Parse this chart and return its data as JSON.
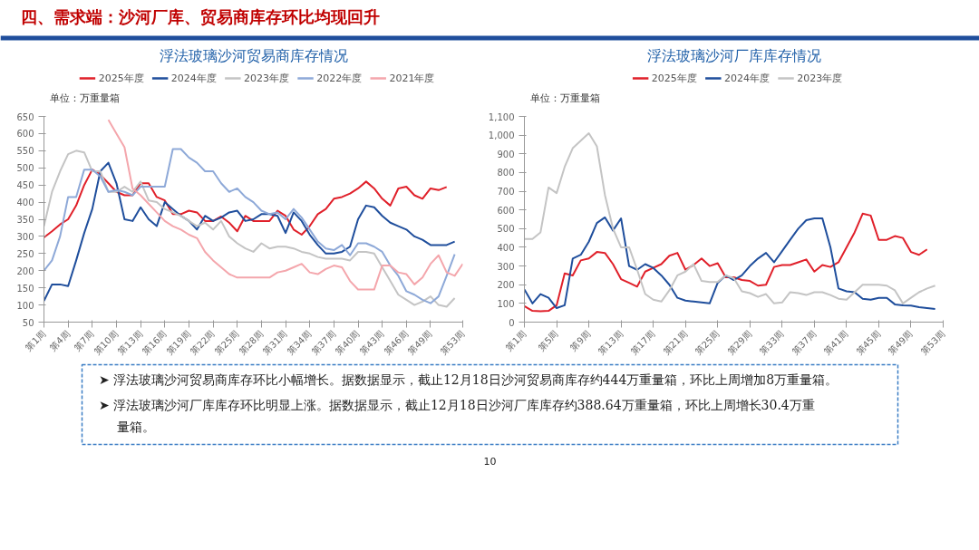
{
  "chart_data": [
    {
      "type": "other",
      "title": "四、需求端：沙河厂库、贸易商库存环比均现回升"
    },
    {
      "type": "line",
      "title": "浮法玻璃沙河贸易商库存情况",
      "ylabel": "单位：万重量箱",
      "legend": "top",
      "categories": [
        "第1周",
        null,
        null,
        "第4周",
        null,
        null,
        "第7周",
        null,
        null,
        "第10周",
        null,
        null,
        "第13周",
        null,
        null,
        "第16周",
        null,
        null,
        "第19周",
        null,
        null,
        "第22周",
        null,
        null,
        "第25周",
        null,
        null,
        "第28周",
        null,
        null,
        "第31周",
        null,
        null,
        "第34周",
        null,
        null,
        "第37周",
        null,
        null,
        "第40周",
        null,
        null,
        "第43周",
        null,
        null,
        "第46周",
        null,
        null,
        "第49周",
        null,
        null,
        null,
        "第53周"
      ],
      "ylim": [
        50,
        650
      ],
      "yticks": [
        50,
        100,
        150,
        200,
        250,
        300,
        350,
        400,
        450,
        500,
        550,
        600,
        650
      ],
      "series": [
        {
          "name": "2025年度",
          "color": "#e0202a",
          "values": [
            297,
            315,
            335,
            350,
            390,
            450,
            495,
            480,
            455,
            430,
            420,
            420,
            455,
            455,
            415,
            405,
            365,
            365,
            375,
            370,
            345,
            345,
            358,
            340,
            315,
            360,
            345,
            345,
            345,
            375,
            360,
            320,
            305,
            330,
            365,
            380,
            410,
            415,
            425,
            440,
            460,
            440,
            410,
            390,
            440,
            445,
            420,
            410,
            440,
            435,
            444,
            null,
            null
          ]
        },
        {
          "name": "2024年度",
          "color": "#1f4e9c",
          "values": [
            112,
            160,
            160,
            155,
            230,
            310,
            380,
            490,
            515,
            455,
            350,
            345,
            385,
            350,
            330,
            400,
            380,
            360,
            345,
            320,
            360,
            345,
            355,
            370,
            375,
            345,
            350,
            365,
            365,
            360,
            310,
            370,
            345,
            305,
            275,
            250,
            250,
            255,
            270,
            350,
            390,
            385,
            360,
            340,
            330,
            320,
            300,
            290,
            275,
            275,
            275,
            285,
            null
          ]
        },
        {
          "name": "2023年度",
          "color": "#c4c4c4",
          "values": [
            330,
            430,
            490,
            540,
            550,
            545,
            490,
            490,
            430,
            430,
            445,
            430,
            460,
            405,
            400,
            380,
            370,
            360,
            345,
            330,
            340,
            320,
            345,
            300,
            280,
            265,
            255,
            280,
            265,
            270,
            270,
            265,
            255,
            250,
            240,
            235,
            235,
            235,
            230,
            255,
            255,
            250,
            210,
            170,
            130,
            115,
            100,
            110,
            125,
            100,
            95,
            120,
            null
          ]
        },
        {
          "name": "2022年度",
          "color": "#8ea9d8",
          "values": [
            200,
            230,
            300,
            415,
            415,
            495,
            495,
            475,
            430,
            435,
            430,
            420,
            445,
            445,
            445,
            445,
            555,
            555,
            530,
            515,
            490,
            490,
            455,
            430,
            440,
            415,
            400,
            375,
            365,
            370,
            350,
            380,
            355,
            320,
            285,
            265,
            260,
            275,
            245,
            280,
            280,
            270,
            255,
            215,
            185,
            140,
            130,
            115,
            105,
            125,
            185,
            248,
            null
          ]
        },
        {
          "name": "2021年度",
          "color": "#f4a6ac",
          "values": [
            null,
            null,
            null,
            null,
            null,
            null,
            null,
            null,
            640,
            600,
            560,
            440,
            420,
            395,
            370,
            345,
            330,
            320,
            305,
            295,
            255,
            230,
            210,
            190,
            180,
            180,
            180,
            180,
            180,
            195,
            200,
            210,
            220,
            195,
            190,
            205,
            215,
            210,
            170,
            145,
            145,
            145,
            215,
            215,
            195,
            190,
            160,
            180,
            220,
            245,
            195,
            185,
            220
          ]
        }
      ]
    },
    {
      "type": "line",
      "title": "浮法玻璃沙河厂库库存情况",
      "ylabel": "单位：万重量箱",
      "legend": "top",
      "categories": [
        "第1周",
        null,
        null,
        null,
        "第5周",
        null,
        null,
        null,
        "第9周",
        null,
        null,
        null,
        "第13周",
        null,
        null,
        null,
        "第17周",
        null,
        null,
        null,
        "第21周",
        null,
        null,
        null,
        "第25周",
        null,
        null,
        null,
        "第29周",
        null,
        null,
        null,
        "第33周",
        null,
        null,
        null,
        "第37周",
        null,
        null,
        null,
        "第41周",
        null,
        null,
        null,
        "第45周",
        null,
        null,
        null,
        "第49周",
        null,
        null,
        null,
        "第53周"
      ],
      "ylim": [
        0,
        1100
      ],
      "yticks": [
        0,
        100,
        200,
        300,
        400,
        500,
        600,
        700,
        800,
        900,
        {
          "value": 1000,
          "label": "1,000"
        },
        {
          "value": 1100,
          "label": "1,100"
        }
      ],
      "series": [
        {
          "name": "2025年度",
          "color": "#e0202a",
          "values": [
            85,
            60,
            58,
            60,
            90,
            260,
            250,
            330,
            340,
            375,
            370,
            310,
            230,
            210,
            190,
            270,
            290,
            310,
            355,
            370,
            280,
            305,
            340,
            300,
            315,
            240,
            240,
            225,
            220,
            195,
            200,
            295,
            305,
            305,
            320,
            335,
            270,
            305,
            295,
            320,
            400,
            480,
            580,
            570,
            440,
            440,
            460,
            450,
            375,
            360,
            389,
            null,
            null
          ]
        },
        {
          "name": "2024年度",
          "color": "#1f4e9c",
          "values": [
            175,
            100,
            150,
            130,
            75,
            90,
            340,
            360,
            430,
            530,
            560,
            490,
            555,
            300,
            280,
            310,
            290,
            250,
            200,
            130,
            115,
            110,
            105,
            100,
            210,
            250,
            225,
            250,
            300,
            340,
            370,
            320,
            380,
            440,
            500,
            545,
            555,
            555,
            400,
            180,
            165,
            160,
            125,
            120,
            130,
            130,
            95,
            90,
            88,
            80,
            75,
            70,
            null
          ]
        },
        {
          "name": "2023年度",
          "color": "#c4c4c4",
          "values": [
            445,
            445,
            480,
            720,
            690,
            830,
            930,
            970,
            1010,
            940,
            680,
            500,
            400,
            400,
            280,
            150,
            120,
            110,
            170,
            250,
            270,
            310,
            220,
            215,
            215,
            250,
            235,
            165,
            155,
            135,
            150,
            100,
            105,
            160,
            155,
            145,
            160,
            160,
            145,
            125,
            120,
            160,
            200,
            200,
            200,
            195,
            170,
            100,
            130,
            160,
            180,
            195,
            null
          ]
        }
      ]
    },
    {
      "type": "other",
      "annotations": [
        "➤ 浮法玻璃沙河贸易商库存环比小幅增长。据数据显示，截止12月18日沙河贸易商库存约444万重量箱，环比上周增加8万重量箱。",
        "➤ 浮法玻璃沙河厂库库存环比明显上涨。据数据显示，截止12月18日沙河厂库库存约388.64万重量箱，环比上周增长30.4万重量箱。",
        "10"
      ]
    }
  ]
}
